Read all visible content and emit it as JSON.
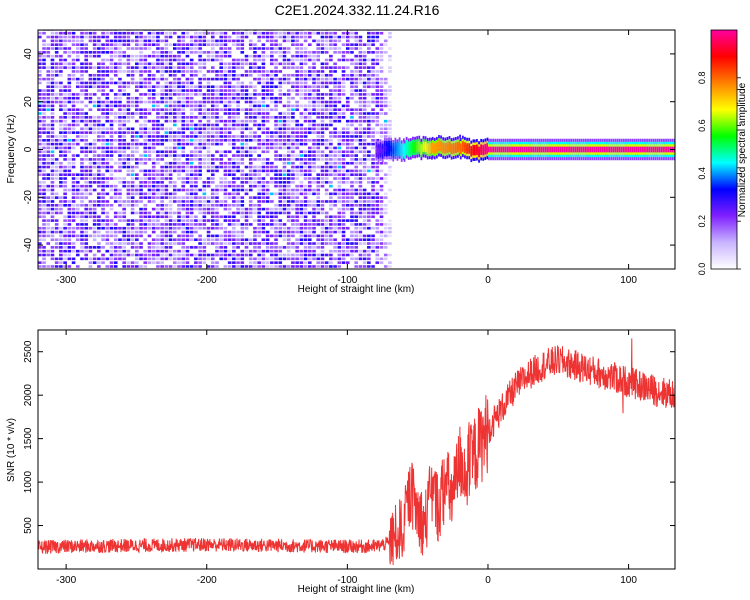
{
  "figure": {
    "title": "C2E1.2024.332.11.24.R16"
  },
  "chart_data": [
    {
      "type": "heatmap",
      "xlabel": "Height of straight line (km)",
      "ylabel": "Frequency (Hz)",
      "xlim": [
        -320,
        133
      ],
      "ylim": [
        -50,
        50
      ],
      "x_ticks": [
        -300,
        -200,
        -100,
        0,
        100
      ],
      "y_ticks": [
        -40,
        -20,
        0,
        20,
        40
      ],
      "colorbar": {
        "label": "Normalized spectral amplitude",
        "range": [
          0,
          1
        ],
        "ticks": [
          "0.0",
          "0.2",
          "0.4",
          "0.6",
          "0.8"
        ],
        "tick_values": [
          0.0,
          0.2,
          0.4,
          0.6,
          0.8
        ],
        "colormap": [
          "#ffffff",
          "#c8b4ff",
          "#8020ff",
          "#0000ff",
          "#00ffff",
          "#00ff00",
          "#ffff00",
          "#ff8000",
          "#ff0000",
          "#ff00a0"
        ]
      },
      "noise_region": {
        "x": [
          -320,
          -80
        ],
        "level": 0.25
      },
      "carrier": [
        {
          "x": -80,
          "f": 0,
          "amp": 0.25
        },
        {
          "x": -60,
          "f": 0,
          "amp": 0.45
        },
        {
          "x": -40,
          "f": 1,
          "amp": 0.75
        },
        {
          "x": -20,
          "f": 1,
          "amp": 0.8
        },
        {
          "x": -10,
          "f": -1,
          "amp": 0.9
        },
        {
          "x": 0,
          "f": 0,
          "amp": 1.0
        },
        {
          "x": 133,
          "f": 0,
          "amp": 1.0
        }
      ]
    },
    {
      "type": "line",
      "xlabel": "Height of straight line (km)",
      "ylabel": "SNR (10 * v/v)",
      "xlim": [
        -320,
        133
      ],
      "ylim": [
        0,
        2750
      ],
      "x_ticks": [
        -300,
        -200,
        -100,
        0,
        100
      ],
      "y_ticks": [
        500,
        1000,
        1500,
        2000,
        2500
      ],
      "series_color": "#ee3333",
      "series": [
        {
          "x": [
            -320,
            -300,
            -250,
            -200,
            -150,
            -100,
            -80,
            -70,
            -60,
            -55,
            -50,
            -45,
            -40,
            -35,
            -30,
            -25,
            -20,
            -15,
            -10,
            -5,
            0,
            10,
            20,
            30,
            40,
            50,
            60,
            70,
            80,
            90,
            100,
            110,
            120,
            133
          ],
          "values": [
            250,
            260,
            270,
            280,
            270,
            260,
            260,
            300,
            500,
            900,
            650,
            500,
            900,
            700,
            1000,
            800,
            1250,
            1100,
            1300,
            1450,
            1600,
            1850,
            2100,
            2250,
            2350,
            2400,
            2350,
            2300,
            2250,
            2200,
            2150,
            2100,
            2050,
            2000
          ]
        }
      ]
    }
  ]
}
